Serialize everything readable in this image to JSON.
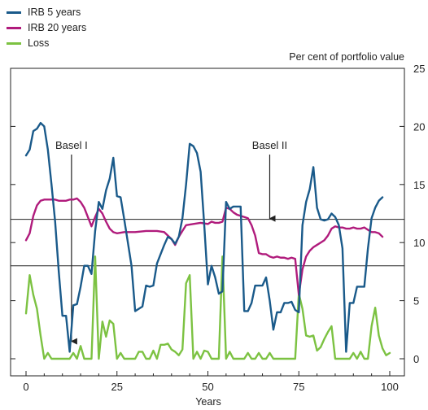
{
  "chart_data": {
    "type": "line",
    "legend_placement": "top-left",
    "grid": false,
    "xlabel": "Years",
    "ylabel": "Per cent of portfolio value",
    "xlim": [
      0,
      100
    ],
    "ylim": [
      0,
      25
    ],
    "x_ticks": [
      "0",
      "25",
      "50",
      "75",
      "100"
    ],
    "y_ticks": [
      "0",
      "5",
      "10",
      "15",
      "20",
      "25"
    ],
    "reference_lines": [
      {
        "label": "Basel I",
        "y": 8,
        "arrow_x": 12.5
      },
      {
        "label": "Basel II",
        "y": 12,
        "arrow_x": 67
      }
    ],
    "series": [
      {
        "name": "IRB 5 years",
        "color": "#1a5a8a",
        "points": [
          [
            0,
            17.5
          ],
          [
            1,
            18
          ],
          [
            2,
            19.6
          ],
          [
            3,
            19.8
          ],
          [
            4,
            20.3
          ],
          [
            5,
            20
          ],
          [
            6,
            18
          ],
          [
            7,
            15
          ],
          [
            8,
            11.8
          ],
          [
            9,
            7.5
          ],
          [
            10,
            3.7
          ],
          [
            11,
            3.7
          ],
          [
            12,
            0.6
          ],
          [
            13,
            4.6
          ],
          [
            14,
            4.7
          ],
          [
            15,
            6.2
          ],
          [
            16,
            8
          ],
          [
            17,
            8
          ],
          [
            18,
            7.3
          ],
          [
            19,
            11
          ],
          [
            20,
            13.5
          ],
          [
            21,
            12.9
          ],
          [
            22,
            14.5
          ],
          [
            23,
            15.5
          ],
          [
            24,
            17.3
          ],
          [
            25,
            14
          ],
          [
            26,
            13.9
          ],
          [
            27,
            12
          ],
          [
            28,
            10
          ],
          [
            29,
            8
          ],
          [
            30,
            4.1
          ],
          [
            31,
            4.3
          ],
          [
            32,
            4.5
          ],
          [
            33,
            6.3
          ],
          [
            34,
            6.2
          ],
          [
            35,
            6.3
          ],
          [
            36,
            8.2
          ],
          [
            37,
            9
          ],
          [
            38,
            9.8
          ],
          [
            39,
            10.5
          ],
          [
            40,
            10.3
          ],
          [
            41,
            9.9
          ],
          [
            42,
            10.5
          ],
          [
            43,
            12.1
          ],
          [
            44,
            15
          ],
          [
            45,
            18.5
          ],
          [
            46,
            18.3
          ],
          [
            47,
            17.7
          ],
          [
            48,
            16.1
          ],
          [
            49,
            11.5
          ],
          [
            50,
            6.4
          ],
          [
            51,
            8
          ],
          [
            52,
            7
          ],
          [
            53,
            5.6
          ],
          [
            54,
            5.8
          ],
          [
            55,
            13.5
          ],
          [
            56,
            12.9
          ],
          [
            57,
            13.1
          ],
          [
            58,
            13.1
          ],
          [
            59,
            13.1
          ],
          [
            60,
            4.1
          ],
          [
            61,
            4.1
          ],
          [
            62,
            4.8
          ],
          [
            63,
            6.3
          ],
          [
            64,
            6.3
          ],
          [
            65,
            6.3
          ],
          [
            66,
            7
          ],
          [
            67,
            5
          ],
          [
            68,
            2.5
          ],
          [
            69,
            4
          ],
          [
            70,
            4
          ],
          [
            71,
            4.8
          ],
          [
            72,
            4.8
          ],
          [
            73,
            4.9
          ],
          [
            74,
            4.2
          ],
          [
            75,
            4
          ],
          [
            76,
            11.5
          ],
          [
            77,
            13.5
          ],
          [
            78,
            14.6
          ],
          [
            79,
            16.5
          ],
          [
            80,
            13
          ],
          [
            81,
            12
          ],
          [
            82,
            11.9
          ],
          [
            83,
            12
          ],
          [
            84,
            12.5
          ],
          [
            85,
            12.2
          ],
          [
            86,
            11.5
          ],
          [
            87,
            9.5
          ],
          [
            88,
            0.6
          ],
          [
            89,
            4.8
          ],
          [
            90,
            4.8
          ],
          [
            91,
            6.2
          ],
          [
            92,
            6.2
          ],
          [
            93,
            6.2
          ],
          [
            94,
            9.5
          ],
          [
            95,
            12.1
          ],
          [
            96,
            13
          ],
          [
            97,
            13.6
          ],
          [
            98,
            13.9
          ]
        ]
      },
      {
        "name": "IRB 20 years",
        "color": "#b01b7c",
        "points": [
          [
            0,
            10.2
          ],
          [
            1,
            10.8
          ],
          [
            2,
            12.3
          ],
          [
            3,
            13.2
          ],
          [
            4,
            13.6
          ],
          [
            5,
            13.7
          ],
          [
            6,
            13.7
          ],
          [
            7,
            13.7
          ],
          [
            8,
            13.7
          ],
          [
            9,
            13.6
          ],
          [
            10,
            13.6
          ],
          [
            11,
            13.6
          ],
          [
            12,
            13.7
          ],
          [
            13,
            13.7
          ],
          [
            14,
            13.8
          ],
          [
            15,
            13.5
          ],
          [
            16,
            13
          ],
          [
            17,
            12.2
          ],
          [
            18,
            11.4
          ],
          [
            19,
            12.2
          ],
          [
            20,
            12.9
          ],
          [
            21,
            12.5
          ],
          [
            22,
            11.8
          ],
          [
            23,
            11.2
          ],
          [
            24,
            10.9
          ],
          [
            25,
            10.8
          ],
          [
            27,
            10.9
          ],
          [
            30,
            10.9
          ],
          [
            33,
            11
          ],
          [
            36,
            11
          ],
          [
            38,
            10.9
          ],
          [
            40,
            10.3
          ],
          [
            41,
            9.8
          ],
          [
            42,
            10.5
          ],
          [
            43,
            11
          ],
          [
            44,
            11.5
          ],
          [
            46,
            11.6
          ],
          [
            48,
            11.7
          ],
          [
            50,
            11.6
          ],
          [
            51,
            11.8
          ],
          [
            52,
            11.7
          ],
          [
            53,
            11.7
          ],
          [
            54,
            11.8
          ],
          [
            55,
            13
          ],
          [
            56,
            12.9
          ],
          [
            57,
            12.6
          ],
          [
            58,
            12.4
          ],
          [
            59,
            12.3
          ],
          [
            60,
            12.2
          ],
          [
            61,
            12.1
          ],
          [
            62,
            11.5
          ],
          [
            63,
            10.6
          ],
          [
            64,
            9.1
          ],
          [
            65,
            9
          ],
          [
            66,
            9
          ],
          [
            67,
            8.8
          ],
          [
            68,
            8.7
          ],
          [
            69,
            8.8
          ],
          [
            70,
            8.7
          ],
          [
            71,
            8.7
          ],
          [
            72,
            8.6
          ],
          [
            73,
            8.7
          ],
          [
            74,
            8.6
          ],
          [
            75,
            5.5
          ],
          [
            76,
            7.7
          ],
          [
            77,
            8.8
          ],
          [
            78,
            9.3
          ],
          [
            79,
            9.6
          ],
          [
            80,
            9.8
          ],
          [
            81,
            10
          ],
          [
            82,
            10.2
          ],
          [
            83,
            10.6
          ],
          [
            84,
            11.2
          ],
          [
            85,
            11.4
          ],
          [
            86,
            11.3
          ],
          [
            87,
            11.3
          ],
          [
            88,
            11.2
          ],
          [
            89,
            11.2
          ],
          [
            90,
            11.3
          ],
          [
            91,
            11.2
          ],
          [
            92,
            11.2
          ],
          [
            93,
            11.3
          ],
          [
            94,
            11.1
          ],
          [
            95,
            10.9
          ],
          [
            96,
            10.9
          ],
          [
            97,
            10.8
          ],
          [
            98,
            10.5
          ]
        ]
      },
      {
        "name": "Loss",
        "color": "#7cc242",
        "points": [
          [
            0,
            3.9
          ],
          [
            1,
            7.2
          ],
          [
            2,
            5.5
          ],
          [
            3,
            4.3
          ],
          [
            4,
            2
          ],
          [
            5,
            0
          ],
          [
            6,
            0.5
          ],
          [
            7,
            0
          ],
          [
            8,
            0
          ],
          [
            10,
            0
          ],
          [
            11,
            0
          ],
          [
            12,
            0
          ],
          [
            13,
            0.5
          ],
          [
            14,
            0
          ],
          [
            15,
            1.1
          ],
          [
            16,
            0
          ],
          [
            17,
            0
          ],
          [
            18,
            0
          ],
          [
            19,
            8.8
          ],
          [
            20,
            0
          ],
          [
            21,
            3.2
          ],
          [
            22,
            1.9
          ],
          [
            23,
            3.3
          ],
          [
            24,
            3
          ],
          [
            25,
            0
          ],
          [
            26,
            0.5
          ],
          [
            27,
            0
          ],
          [
            30,
            0
          ],
          [
            31,
            0.6
          ],
          [
            32,
            0.6
          ],
          [
            33,
            0
          ],
          [
            34,
            0
          ],
          [
            35,
            0.7
          ],
          [
            36,
            0
          ],
          [
            37,
            1.2
          ],
          [
            38,
            1.2
          ],
          [
            39,
            1.3
          ],
          [
            40,
            0.8
          ],
          [
            41,
            0.6
          ],
          [
            42,
            0.3
          ],
          [
            43,
            0.8
          ],
          [
            44,
            6.5
          ],
          [
            45,
            7.2
          ],
          [
            46,
            0
          ],
          [
            47,
            0.6
          ],
          [
            48,
            0
          ],
          [
            49,
            0.7
          ],
          [
            50,
            0.6
          ],
          [
            51,
            0
          ],
          [
            52,
            0
          ],
          [
            53,
            0
          ],
          [
            54,
            8.8
          ],
          [
            55,
            0
          ],
          [
            56,
            0.6
          ],
          [
            57,
            0
          ],
          [
            58,
            0
          ],
          [
            59,
            0
          ],
          [
            60,
            0
          ],
          [
            61,
            0.5
          ],
          [
            62,
            0
          ],
          [
            63,
            0
          ],
          [
            64,
            0.5
          ],
          [
            65,
            0
          ],
          [
            66,
            0
          ],
          [
            67,
            0.5
          ],
          [
            68,
            0
          ],
          [
            69,
            0
          ],
          [
            70,
            0
          ],
          [
            71,
            0
          ],
          [
            72,
            0
          ],
          [
            73,
            0
          ],
          [
            74,
            0
          ],
          [
            75,
            5.6
          ],
          [
            76,
            4.3
          ],
          [
            77,
            2
          ],
          [
            78,
            1.9
          ],
          [
            79,
            2
          ],
          [
            80,
            0.7
          ],
          [
            81,
            1
          ],
          [
            82,
            1.7
          ],
          [
            83,
            2.3
          ],
          [
            84,
            2.8
          ],
          [
            85,
            0
          ],
          [
            86,
            0
          ],
          [
            87,
            0
          ],
          [
            88,
            0
          ],
          [
            89,
            0
          ],
          [
            90,
            0.5
          ],
          [
            91,
            0
          ],
          [
            92,
            0.6
          ],
          [
            93,
            0
          ],
          [
            94,
            0
          ],
          [
            95,
            2.8
          ],
          [
            96,
            4.4
          ],
          [
            97,
            2
          ],
          [
            98,
            0.9
          ],
          [
            99,
            0.3
          ],
          [
            100,
            0.5
          ]
        ]
      }
    ]
  }
}
